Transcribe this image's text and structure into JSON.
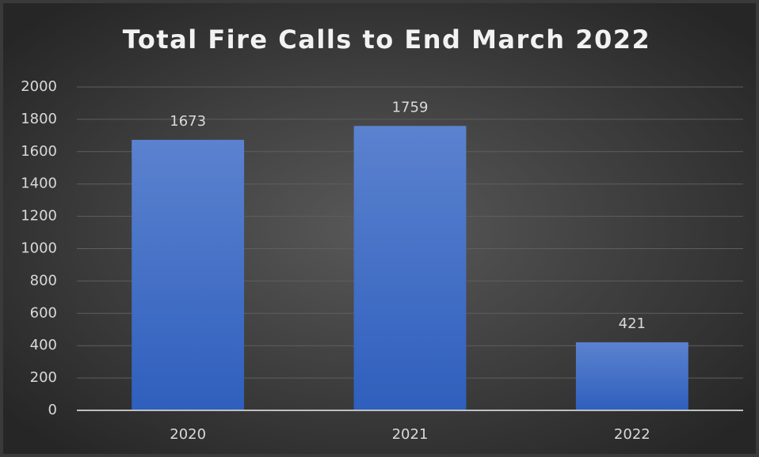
{
  "chart_data": {
    "type": "bar",
    "title": "Total Fire Calls to End March 2022",
    "categories": [
      "2020",
      "2021",
      "2022"
    ],
    "values": [
      1673,
      1759,
      421
    ],
    "color": "#4472c4",
    "ylim": [
      0,
      2000
    ],
    "yticks": [
      0,
      200,
      400,
      600,
      800,
      1000,
      1200,
      1400,
      1600,
      1800,
      2000
    ],
    "grid": true
  }
}
